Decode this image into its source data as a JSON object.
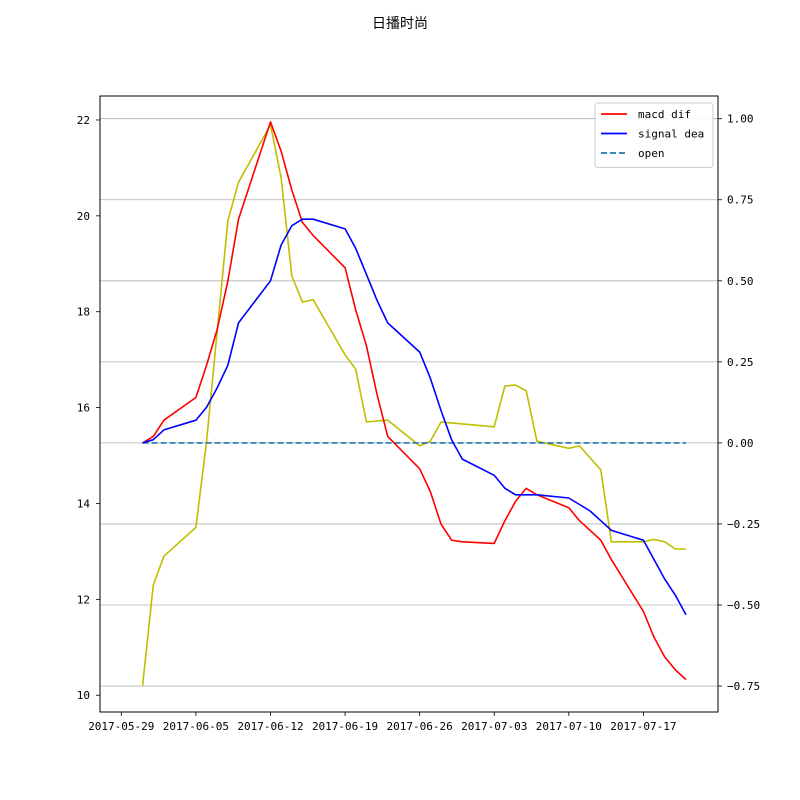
{
  "chart_data": {
    "type": "line",
    "title": "日播时尚",
    "xlabel": "",
    "ylabel": "",
    "x_dates": [
      "2017-05-31",
      "2017-06-01",
      "2017-06-02",
      "2017-06-05",
      "2017-06-06",
      "2017-06-07",
      "2017-06-08",
      "2017-06-09",
      "2017-06-12",
      "2017-06-13",
      "2017-06-14",
      "2017-06-15",
      "2017-06-16",
      "2017-06-19",
      "2017-06-20",
      "2017-06-21",
      "2017-06-22",
      "2017-06-23",
      "2017-06-26",
      "2017-06-27",
      "2017-06-28",
      "2017-06-29",
      "2017-06-30",
      "2017-07-03",
      "2017-07-04",
      "2017-07-05",
      "2017-07-06",
      "2017-07-07",
      "2017-07-10",
      "2017-07-11",
      "2017-07-12",
      "2017-07-13",
      "2017-07-14",
      "2017-07-17",
      "2017-07-18",
      "2017-07-19",
      "2017-07-20",
      "2017-07-21"
    ],
    "x_ticks": [
      "2017-05-29",
      "2017-06-05",
      "2017-06-12",
      "2017-06-19",
      "2017-06-26",
      "2017-07-03",
      "2017-07-10",
      "2017-07-17"
    ],
    "left_axis": {
      "ylim": [
        9.65,
        22.5
      ],
      "ticks": [
        "10",
        "12",
        "14",
        "16",
        "18",
        "20",
        "22"
      ]
    },
    "right_axis": {
      "ylim": [
        -0.83,
        1.07
      ],
      "ticks": [
        "−0.75",
        "−0.50",
        "−0.25",
        "0.00",
        "0.25",
        "0.50",
        "0.75",
        "1.00"
      ]
    },
    "grid": "horizontal, right axis",
    "legend_position": "top-right",
    "series": [
      {
        "name": "macd dif",
        "axis": "right",
        "color": "#ff0000",
        "values": [
          0.0,
          0.02,
          0.07,
          0.14,
          0.24,
          0.35,
          0.5,
          0.69,
          0.99,
          0.9,
          0.78,
          0.68,
          0.64,
          0.54,
          0.41,
          0.3,
          0.15,
          0.02,
          -0.08,
          -0.15,
          -0.25,
          -0.3,
          -0.305,
          -0.31,
          -0.24,
          -0.18,
          -0.14,
          -0.16,
          -0.2,
          -0.24,
          -0.27,
          -0.3,
          -0.36,
          -0.52,
          -0.6,
          -0.66,
          -0.7,
          -0.73
        ]
      },
      {
        "name": "signal dea",
        "axis": "right",
        "color": "#0000ff",
        "values": [
          0.0,
          0.01,
          0.04,
          0.07,
          0.11,
          0.17,
          0.24,
          0.37,
          0.5,
          0.61,
          0.67,
          0.69,
          0.69,
          0.66,
          0.6,
          0.52,
          0.44,
          0.37,
          0.28,
          0.2,
          0.1,
          0.01,
          -0.05,
          -0.1,
          -0.14,
          -0.16,
          -0.16,
          -0.16,
          -0.17,
          -0.19,
          -0.21,
          -0.24,
          -0.27,
          -0.3,
          -0.36,
          -0.42,
          -0.47,
          -0.53
        ]
      },
      {
        "name": "open",
        "axis": "right",
        "color": "#1f77b4",
        "dashed": true,
        "values": [
          0.0,
          0.0,
          0.0,
          0.0,
          0.0,
          0.0,
          0.0,
          0.0,
          0.0,
          0.0,
          0.0,
          0.0,
          0.0,
          0.0,
          0.0,
          0.0,
          0.0,
          0.0,
          0.0,
          0.0,
          0.0,
          0.0,
          0.0,
          0.0,
          0.0,
          0.0,
          0.0,
          0.0,
          0.0,
          0.0,
          0.0,
          0.0,
          0.0,
          0.0,
          0.0,
          0.0,
          0.0,
          0.0
        ]
      },
      {
        "name": "",
        "axis": "left",
        "color": "#bfbf00",
        "values": [
          10.2,
          12.3,
          12.9,
          13.5,
          15.3,
          17.6,
          19.9,
          20.7,
          21.9,
          20.8,
          18.75,
          18.2,
          18.25,
          17.1,
          16.8,
          15.7,
          15.72,
          15.74,
          15.2,
          15.3,
          15.7,
          15.68,
          15.66,
          15.6,
          16.45,
          16.47,
          16.35,
          15.3,
          15.15,
          15.2,
          14.95,
          14.7,
          13.2,
          13.2,
          13.25,
          13.2,
          13.05,
          13.05
        ]
      }
    ]
  }
}
